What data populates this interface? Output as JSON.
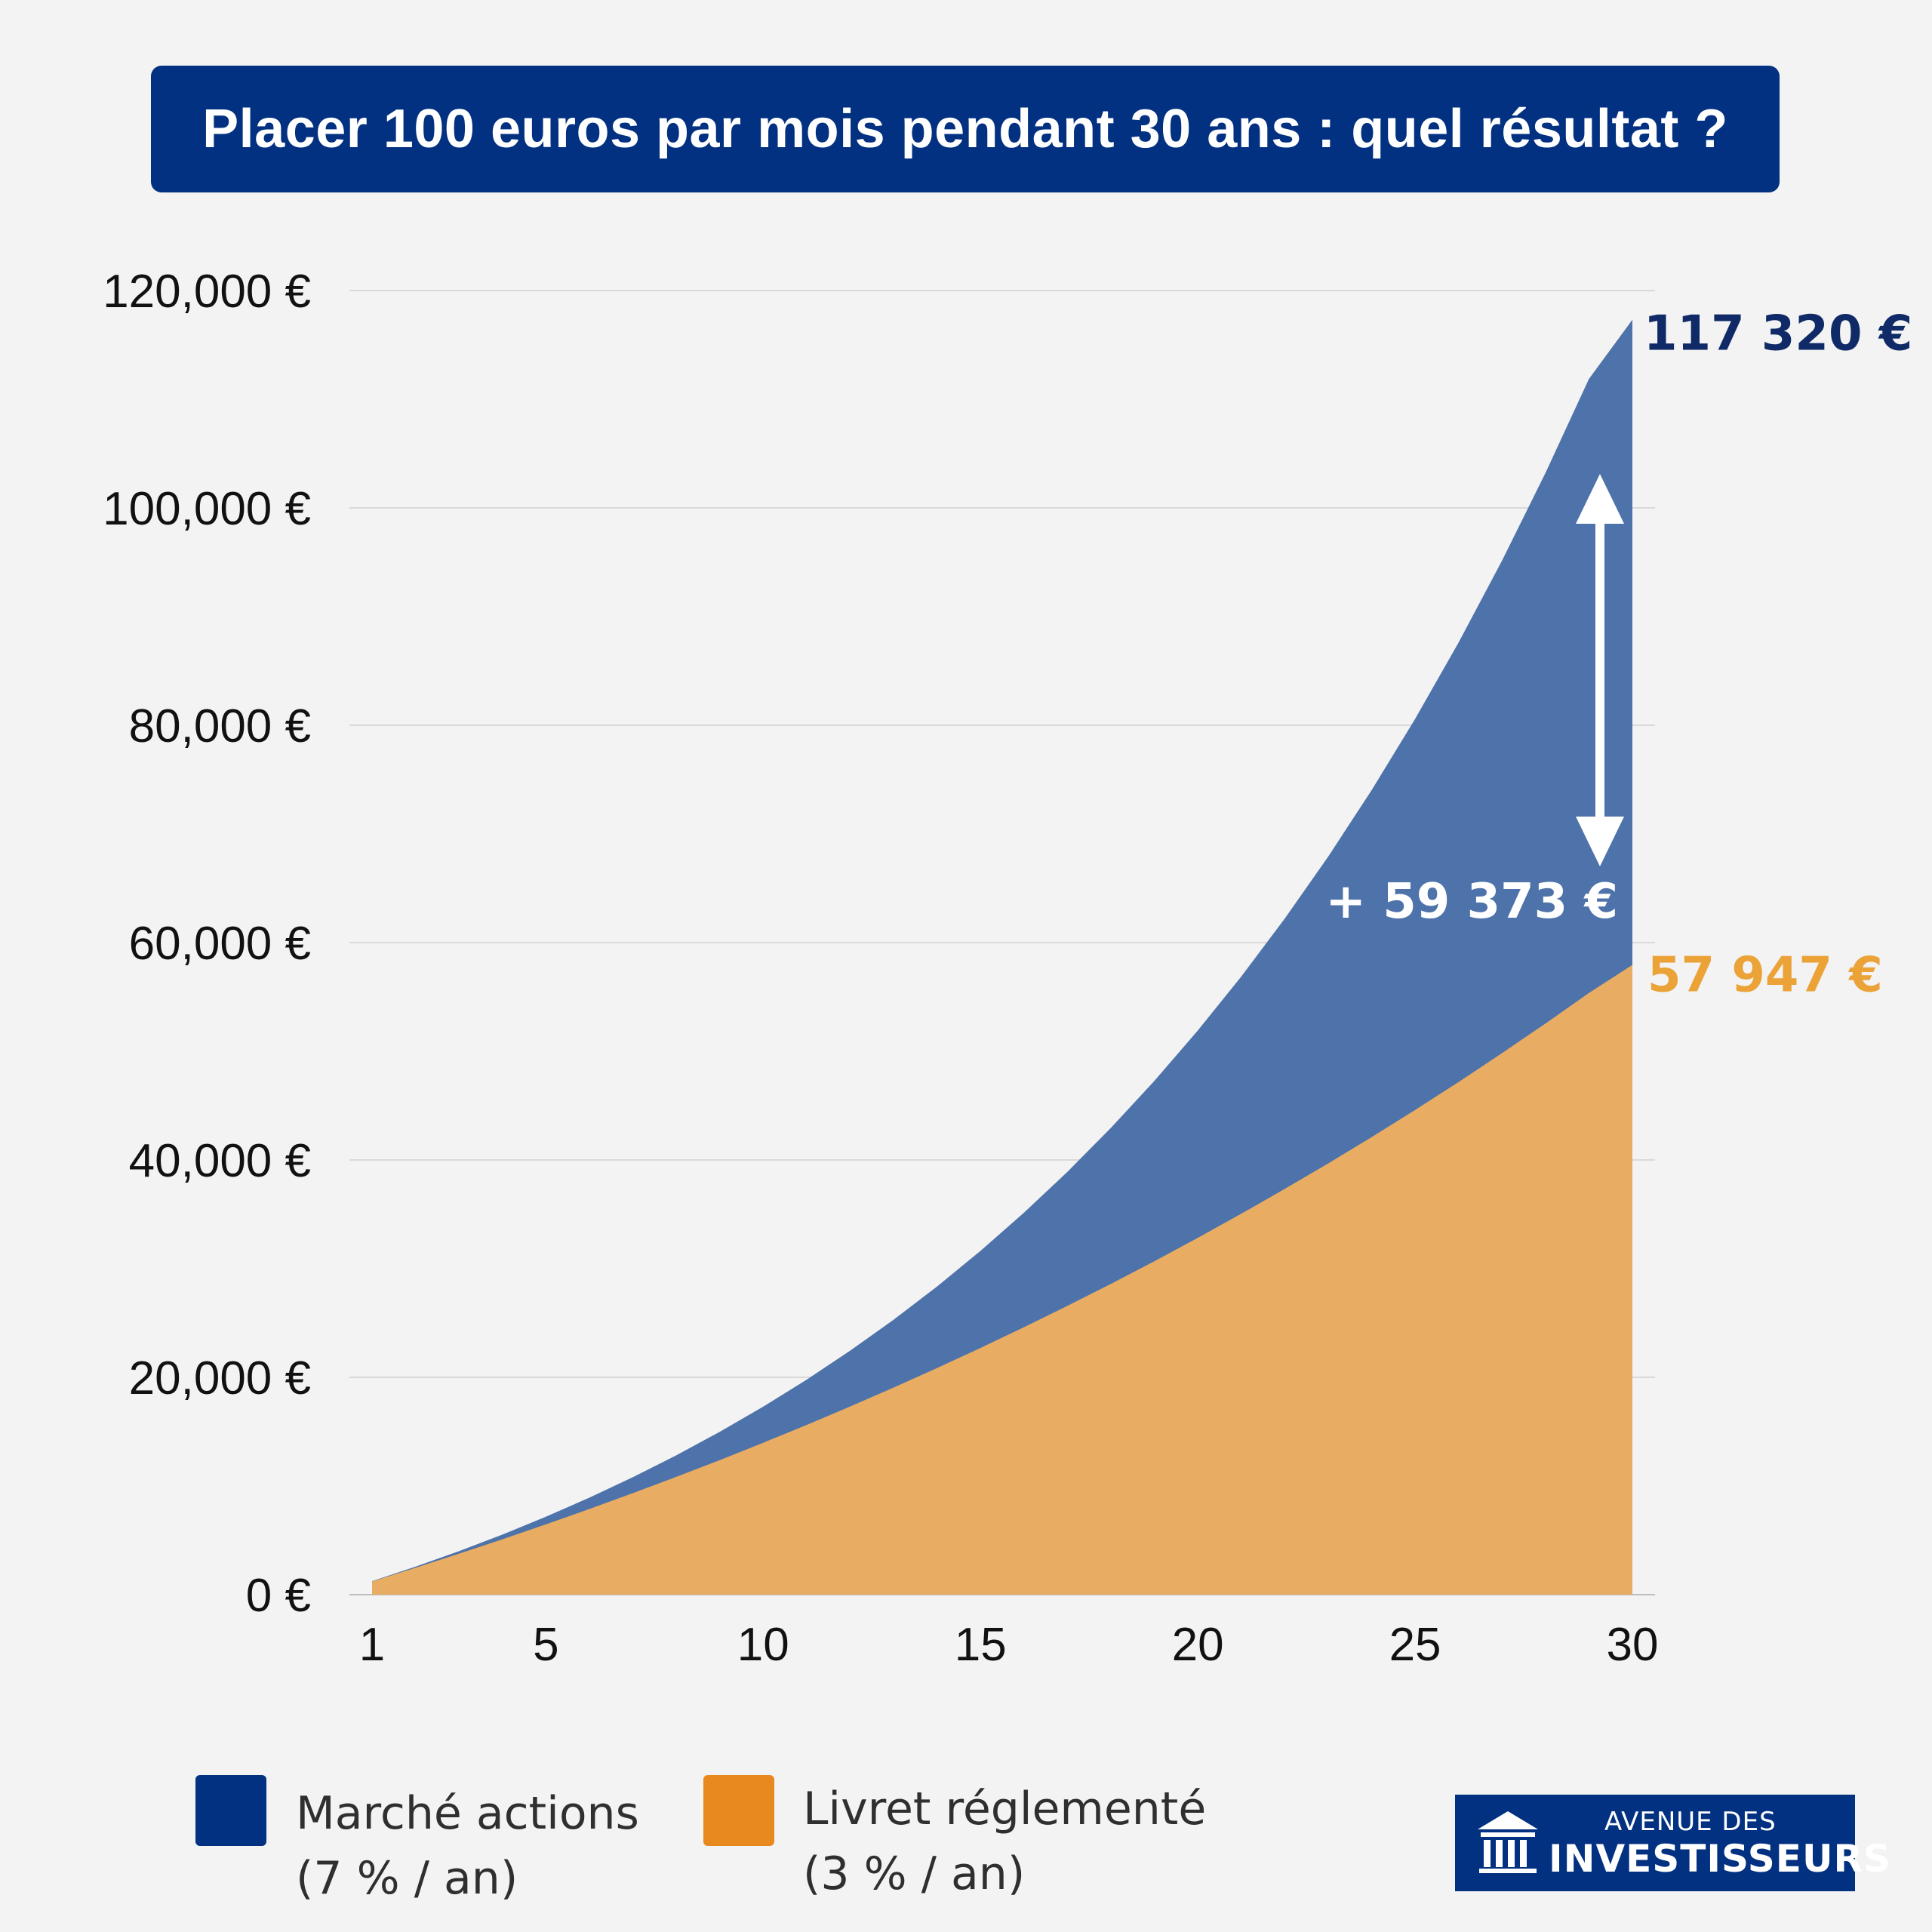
{
  "title": "Placer 100 euros par mois pendant 30 ans : quel résultat ?",
  "colors": {
    "background": "#f3f3f3",
    "title_bg": "#033181",
    "actions_fill": "#4e72aa",
    "actions_legend": "#033181",
    "actions_label": "#0f2a66",
    "livret_fill": "#e8ad63",
    "livret_legend": "#e8891f",
    "livret_label": "#eba237",
    "arrow": "#ffffff",
    "grid": "#d9d9d9"
  },
  "chart_data": {
    "type": "area",
    "title": "Placer 100 euros par mois pendant 30 ans : quel résultat ?",
    "xlabel": "",
    "ylabel": "",
    "x": [
      1,
      2,
      3,
      4,
      5,
      6,
      7,
      8,
      9,
      10,
      11,
      12,
      13,
      14,
      15,
      16,
      17,
      18,
      19,
      20,
      21,
      22,
      23,
      24,
      25,
      26,
      27,
      28,
      29,
      30
    ],
    "x_ticks": [
      "1",
      "5",
      "10",
      "15",
      "20",
      "25",
      "30"
    ],
    "ylim": [
      0,
      120000
    ],
    "y_ticks": [
      "0 €",
      "20,000 €",
      "40,000 €",
      "60,000 €",
      "80,000 €",
      "100,000 €",
      "120,000 €"
    ],
    "grid": true,
    "series": [
      {
        "name": "Marché actions (7 % / an)",
        "values": [
          1242,
          2573,
          3999,
          5528,
          7166,
          8922,
          10804,
          12821,
          14983,
          17300,
          19784,
          22446,
          25299,
          28357,
          31635,
          35148,
          38913,
          42948,
          47273,
          51908,
          56877,
          62202,
          67909,
          74026,
          80583,
          87610,
          95141,
          103213,
          111865,
          117320
        ]
      },
      {
        "name": "Livret réglementé (3 % / an)",
        "values": [
          1217,
          2471,
          3764,
          5095,
          6467,
          7881,
          9337,
          10838,
          12385,
          13978,
          15620,
          17312,
          19055,
          20851,
          22702,
          24609,
          26573,
          28598,
          30683,
          32833,
          35048,
          37330,
          39681,
          42104,
          44600,
          47173,
          49823,
          52555,
          55369,
          57947
        ]
      }
    ],
    "annotations": {
      "actions_final": "117 320 €",
      "livret_final": "57 947 €",
      "difference": "+ 59 373 €"
    },
    "legend_placement": "bottom"
  },
  "legend": [
    {
      "line1": "Marché actions",
      "line2": "(7 % / an)"
    },
    {
      "line1": "Livret réglementé",
      "line2": "(3 % / an)"
    }
  ],
  "logo": {
    "line1": "AVENUE DES",
    "line2": "INVESTISSEURS"
  }
}
